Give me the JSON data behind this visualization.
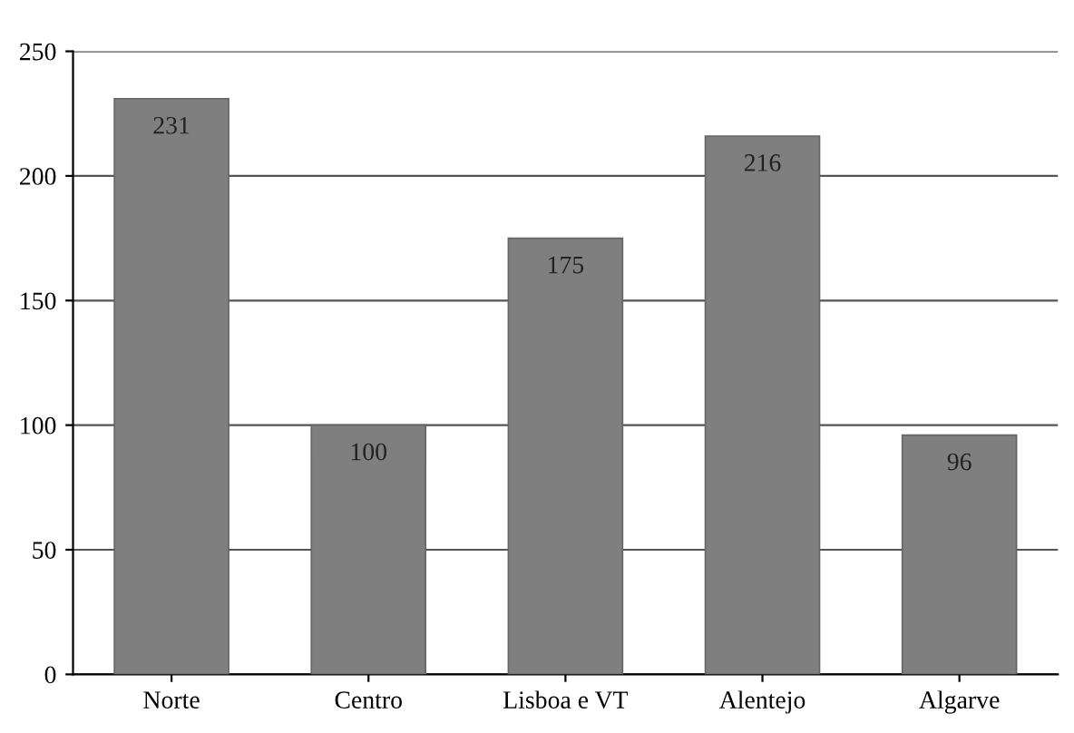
{
  "chart_data": {
    "type": "bar",
    "categories": [
      "Norte",
      "Centro",
      "Lisboa e VT",
      "Alentejo",
      "Algarve"
    ],
    "values": [
      231,
      100,
      175,
      216,
      96
    ],
    "color": "#7f7f7f",
    "data_labels": true,
    "ylim": [
      0,
      250
    ],
    "yticks": [
      0,
      50,
      100,
      150,
      200,
      250
    ],
    "grid": "y",
    "legend": false
  }
}
